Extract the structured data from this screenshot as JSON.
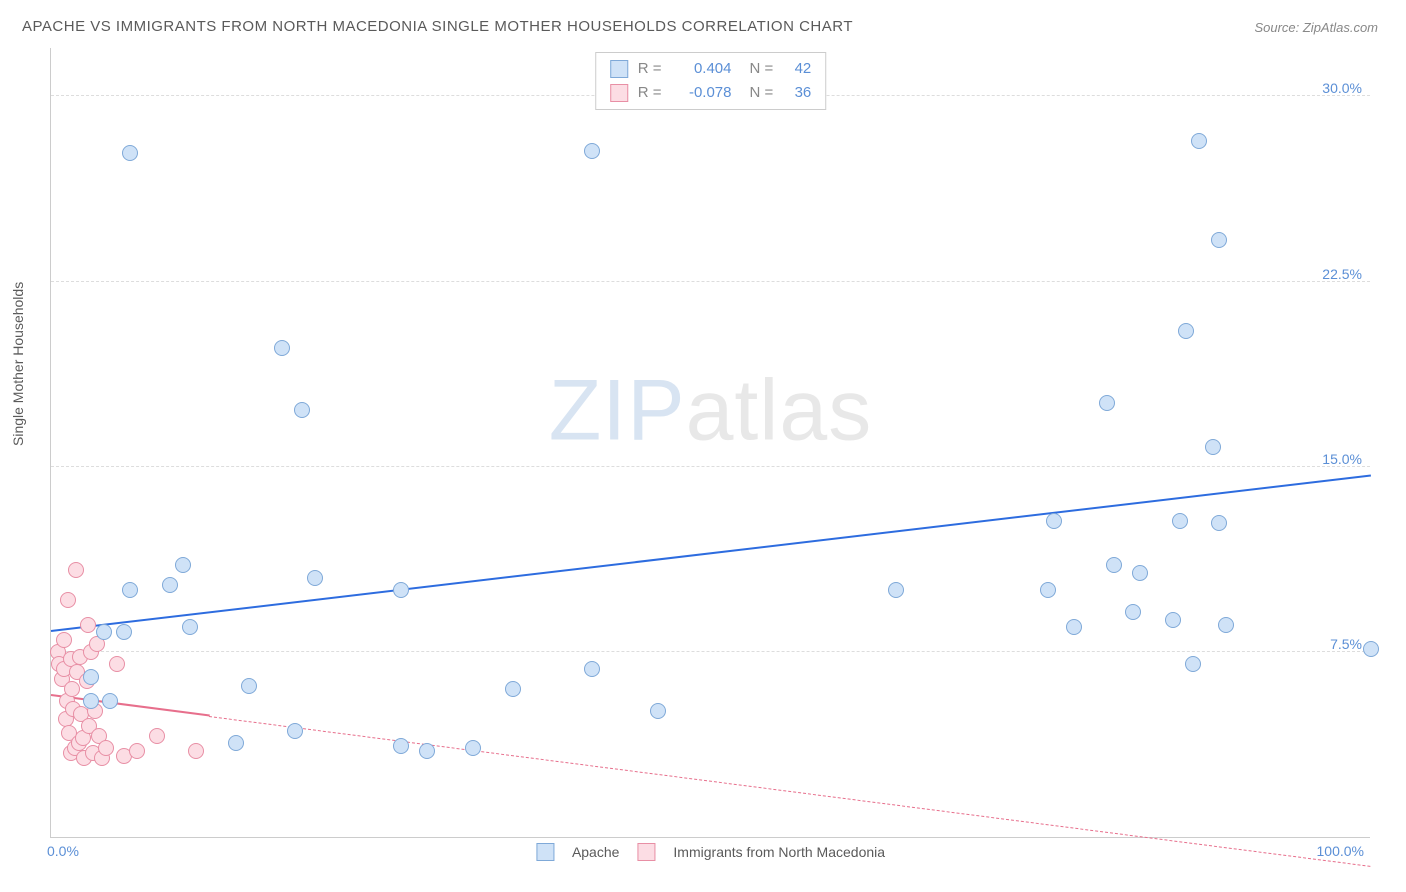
{
  "title": "APACHE VS IMMIGRANTS FROM NORTH MACEDONIA SINGLE MOTHER HOUSEHOLDS CORRELATION CHART",
  "source_label": "Source: ZipAtlas.com",
  "y_axis_title": "Single Mother Households",
  "watermark_a": "ZIP",
  "watermark_b": "atlas",
  "chart": {
    "type": "scatter",
    "xlim": [
      0,
      100
    ],
    "ylim": [
      0,
      32
    ],
    "y_ticks": [
      7.5,
      15.0,
      22.5,
      30.0
    ],
    "y_tick_labels": [
      "7.5%",
      "15.0%",
      "22.5%",
      "30.0%"
    ],
    "x_tick_min": "0.0%",
    "x_tick_max": "100.0%",
    "grid_color": "#dddddd",
    "axis_color": "#cccccc",
    "background_color": "#ffffff",
    "point_radius": 8,
    "point_stroke_width": 1.5
  },
  "series": [
    {
      "name": "Apache",
      "fill": "#cfe2f7",
      "stroke": "#7fa9d8",
      "R": "0.404",
      "N": "42",
      "trend": {
        "x1": 0,
        "y1": 8.3,
        "x2": 100,
        "y2": 14.6,
        "color": "#2d6cdf",
        "width": 2.5,
        "dash": "solid"
      },
      "points": [
        [
          6.0,
          27.7
        ],
        [
          17.5,
          19.8
        ],
        [
          19.0,
          17.3
        ],
        [
          20.0,
          10.5
        ],
        [
          10.0,
          11.0
        ],
        [
          9.0,
          10.2
        ],
        [
          10.5,
          8.5
        ],
        [
          4.0,
          8.3
        ],
        [
          5.5,
          8.3
        ],
        [
          6.0,
          10.0
        ],
        [
          3.0,
          6.5
        ],
        [
          3.0,
          5.5
        ],
        [
          4.5,
          5.5
        ],
        [
          15.0,
          6.1
        ],
        [
          18.5,
          4.3
        ],
        [
          14.0,
          3.8
        ],
        [
          26.5,
          10.0
        ],
        [
          26.5,
          3.7
        ],
        [
          32.0,
          3.6
        ],
        [
          28.5,
          3.5
        ],
        [
          35.0,
          6.0
        ],
        [
          41.0,
          27.8
        ],
        [
          41.0,
          6.8
        ],
        [
          46.0,
          5.1
        ],
        [
          64.0,
          10.0
        ],
        [
          76.0,
          12.8
        ],
        [
          75.5,
          10.0
        ],
        [
          77.5,
          8.5
        ],
        [
          80.5,
          11.0
        ],
        [
          80.0,
          17.6
        ],
        [
          82.0,
          9.1
        ],
        [
          82.5,
          10.7
        ],
        [
          85.0,
          8.8
        ],
        [
          86.0,
          20.5
        ],
        [
          85.5,
          12.8
        ],
        [
          86.5,
          7.0
        ],
        [
          87.0,
          28.2
        ],
        [
          88.0,
          15.8
        ],
        [
          88.5,
          12.7
        ],
        [
          89.0,
          8.6
        ],
        [
          88.5,
          24.2
        ],
        [
          100.0,
          7.6
        ]
      ]
    },
    {
      "name": "Immigrants from North Macedonia",
      "fill": "#fcdde4",
      "stroke": "#e88fa5",
      "R": "-0.078",
      "N": "36",
      "trend": {
        "x1": 0,
        "y1": 5.7,
        "x2": 100,
        "y2": -1.2,
        "color": "#e76f8c",
        "width": 2,
        "dash": "dash",
        "solid_until_x": 12
      },
      "points": [
        [
          0.5,
          7.5
        ],
        [
          0.6,
          7.0
        ],
        [
          0.8,
          6.4
        ],
        [
          1.0,
          8.0
        ],
        [
          1.0,
          6.8
        ],
        [
          1.1,
          4.8
        ],
        [
          1.2,
          5.5
        ],
        [
          1.3,
          9.6
        ],
        [
          1.4,
          4.2
        ],
        [
          1.5,
          7.2
        ],
        [
          1.5,
          3.4
        ],
        [
          1.6,
          6.0
        ],
        [
          1.7,
          5.2
        ],
        [
          1.8,
          3.6
        ],
        [
          1.9,
          10.8
        ],
        [
          2.0,
          6.7
        ],
        [
          2.1,
          3.8
        ],
        [
          2.2,
          7.3
        ],
        [
          2.3,
          5.0
        ],
        [
          2.4,
          4.0
        ],
        [
          2.5,
          3.2
        ],
        [
          2.7,
          6.3
        ],
        [
          2.8,
          8.6
        ],
        [
          2.9,
          4.5
        ],
        [
          3.0,
          7.5
        ],
        [
          3.2,
          3.4
        ],
        [
          3.3,
          5.1
        ],
        [
          3.5,
          7.8
        ],
        [
          3.6,
          4.1
        ],
        [
          3.9,
          3.2
        ],
        [
          4.2,
          3.6
        ],
        [
          5.0,
          7.0
        ],
        [
          5.5,
          3.3
        ],
        [
          6.5,
          3.5
        ],
        [
          8.0,
          4.1
        ],
        [
          11.0,
          3.5
        ]
      ]
    }
  ],
  "legend_top": {
    "r_label": "R  =",
    "n_label": "N  ="
  },
  "legend_bottom": {
    "label_a": "Apache",
    "label_b": "Immigrants from North Macedonia"
  }
}
